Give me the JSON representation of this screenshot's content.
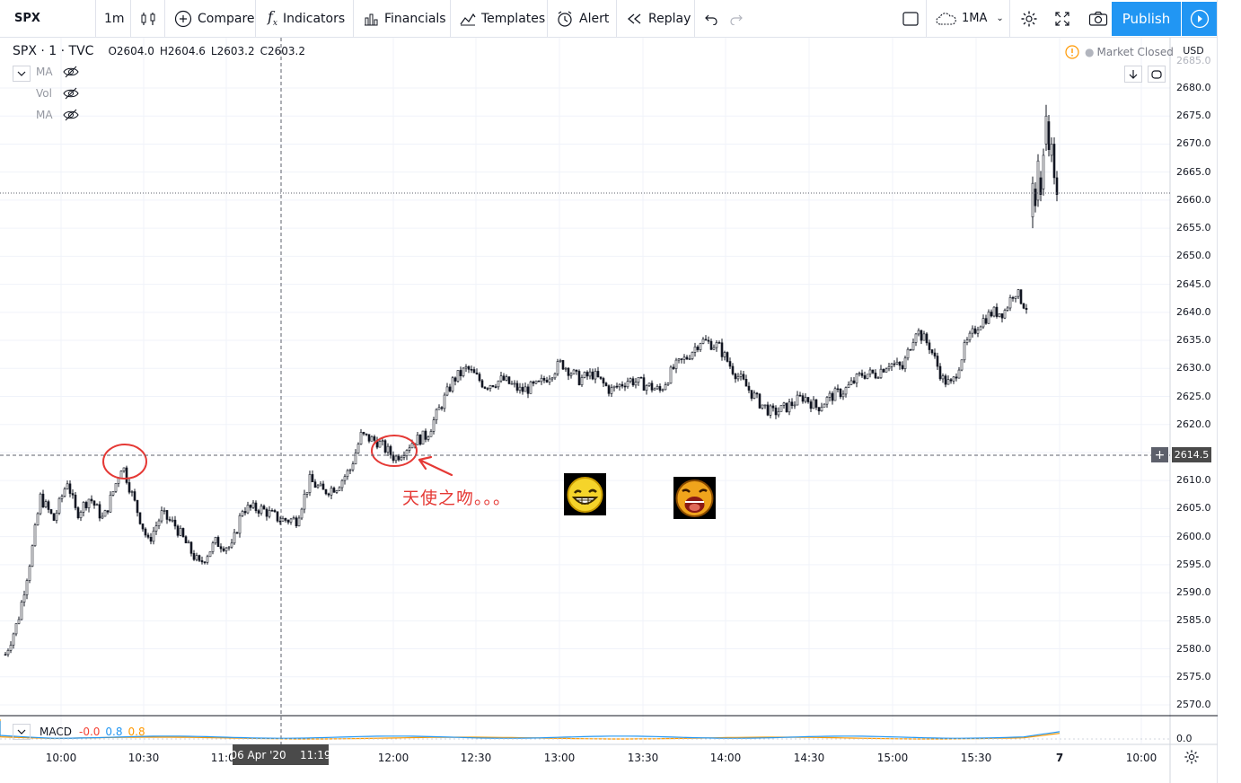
{
  "toolbar": {
    "symbol": "SPX",
    "interval": "1m",
    "compare": "Compare",
    "indicators": "Indicators",
    "financials": "Financials",
    "templates": "Templates",
    "alert": "Alert",
    "replay": "Replay",
    "layout_name": "1MA",
    "publish": "Publish"
  },
  "legend": {
    "symbol": "SPX · 1 · TVC",
    "open_key": "O",
    "open": "2604.0",
    "high_key": "H",
    "high": "2604.6",
    "low_key": "L",
    "low": "2603.2",
    "close_key": "C",
    "close": "2603.2",
    "indicators": [
      "MA",
      "Vol",
      "MA"
    ]
  },
  "status": {
    "market": "Market Closed",
    "currency": "USD"
  },
  "price_axis": [
    "2685.0",
    "2680.0",
    "2675.0",
    "2670.0",
    "2665.0",
    "2660.0",
    "2655.0",
    "2650.0",
    "2645.0",
    "2640.0",
    "2635.0",
    "2630.0",
    "2625.0",
    "2620.0",
    "2615.0",
    "2610.0",
    "2605.0",
    "2600.0",
    "2595.0",
    "2590.0",
    "2585.0",
    "2580.0",
    "2575.0",
    "2570.0"
  ],
  "crosshair_price": "2614.5",
  "crosshair_date": "06 Apr '20    11:19",
  "time_axis": [
    "10:00",
    "10:30",
    "11:00",
    "12:00",
    "12:30",
    "13:00",
    "13:30",
    "14:00",
    "14:30",
    "15:00",
    "15:30",
    "7",
    "10:00"
  ],
  "macd": {
    "name": "MACD",
    "v1": "-0.0",
    "v2": "0.8",
    "v3": "0.8",
    "axis": "0.0",
    "colors": {
      "v1": "#f44336",
      "v2": "#2196f3",
      "v3": "#ff9800"
    }
  },
  "annotation": "天使之吻。。。",
  "colors": {
    "accent": "#2196f3",
    "candle": "#131722",
    "annotation": "#e53935"
  },
  "chart_data": {
    "type": "candlestick",
    "symbol": "SPX",
    "ylim": [
      2568,
      2686
    ],
    "x": [
      "09:30",
      "09:45",
      "10:00",
      "10:15",
      "10:30",
      "10:45",
      "11:00",
      "11:15",
      "11:30",
      "11:45",
      "12:00",
      "12:15",
      "12:30",
      "12:45",
      "13:00",
      "13:15",
      "13:30",
      "13:45",
      "14:00",
      "14:15",
      "14:30",
      "14:45",
      "15:00",
      "15:15",
      "15:30",
      "15:45",
      "16:00",
      "7 09:30",
      "7 09:35",
      "7 09:40"
    ],
    "close": [
      2580,
      2603,
      2607,
      2605,
      2612,
      2600,
      2597,
      2604,
      2603,
      2606,
      2617,
      2615,
      2628,
      2626,
      2628,
      2627,
      2628,
      2634,
      2630,
      2622,
      2625,
      2627,
      2629,
      2635,
      2627,
      2640,
      2642,
      2660,
      2672,
      2662
    ]
  }
}
